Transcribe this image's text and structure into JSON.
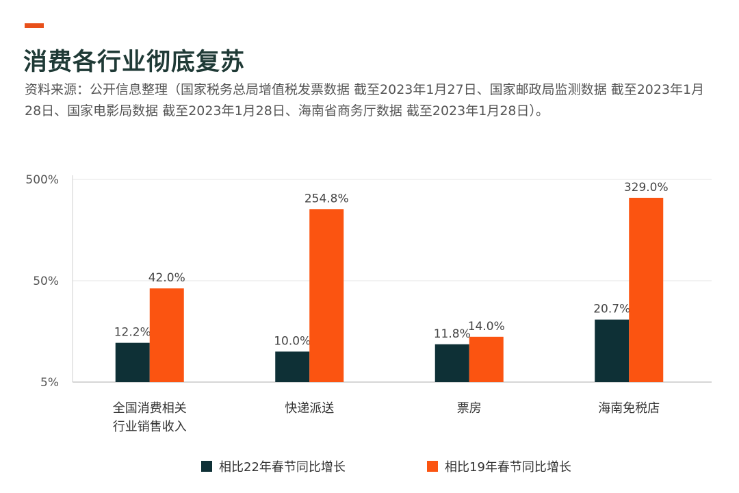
{
  "header": {
    "title": "消费各行业彻底复苏",
    "source": "资料来源：公开信息整理（国家税务总局增值税发票数据 截至2023年1月27日、国家邮政局监测数据 截至2023年1月28日、国家电影局数据 截至2023年1月28日、海南省商务厅数据 截至2023年1月28日）。"
  },
  "colors": {
    "series1": "#0e3036",
    "series2": "#fb5411",
    "grid": "#e6e6e6"
  },
  "chart_data": {
    "type": "bar",
    "yscale": "log",
    "ylim": [
      5,
      500
    ],
    "yticks": [
      5,
      50,
      500
    ],
    "ytick_labels": [
      "5%",
      "50%",
      "500%"
    ],
    "categories": [
      [
        "全国消费相关",
        "行业销售收入"
      ],
      [
        "快递派送"
      ],
      [
        "票房"
      ],
      [
        "海南免税店"
      ]
    ],
    "series": [
      {
        "name": "相比22年春节同比增长",
        "values": [
          12.2,
          10.0,
          11.8,
          20.7
        ],
        "labels": [
          "12.2%",
          "10.0%",
          "11.8%",
          "20.7%"
        ]
      },
      {
        "name": "相比19年春节同比增长",
        "values": [
          42.0,
          254.8,
          14.0,
          329.0
        ],
        "labels": [
          "42.0%",
          "254.8%",
          "14.0%",
          "329.0%"
        ]
      }
    ],
    "legend_position": "bottom"
  }
}
